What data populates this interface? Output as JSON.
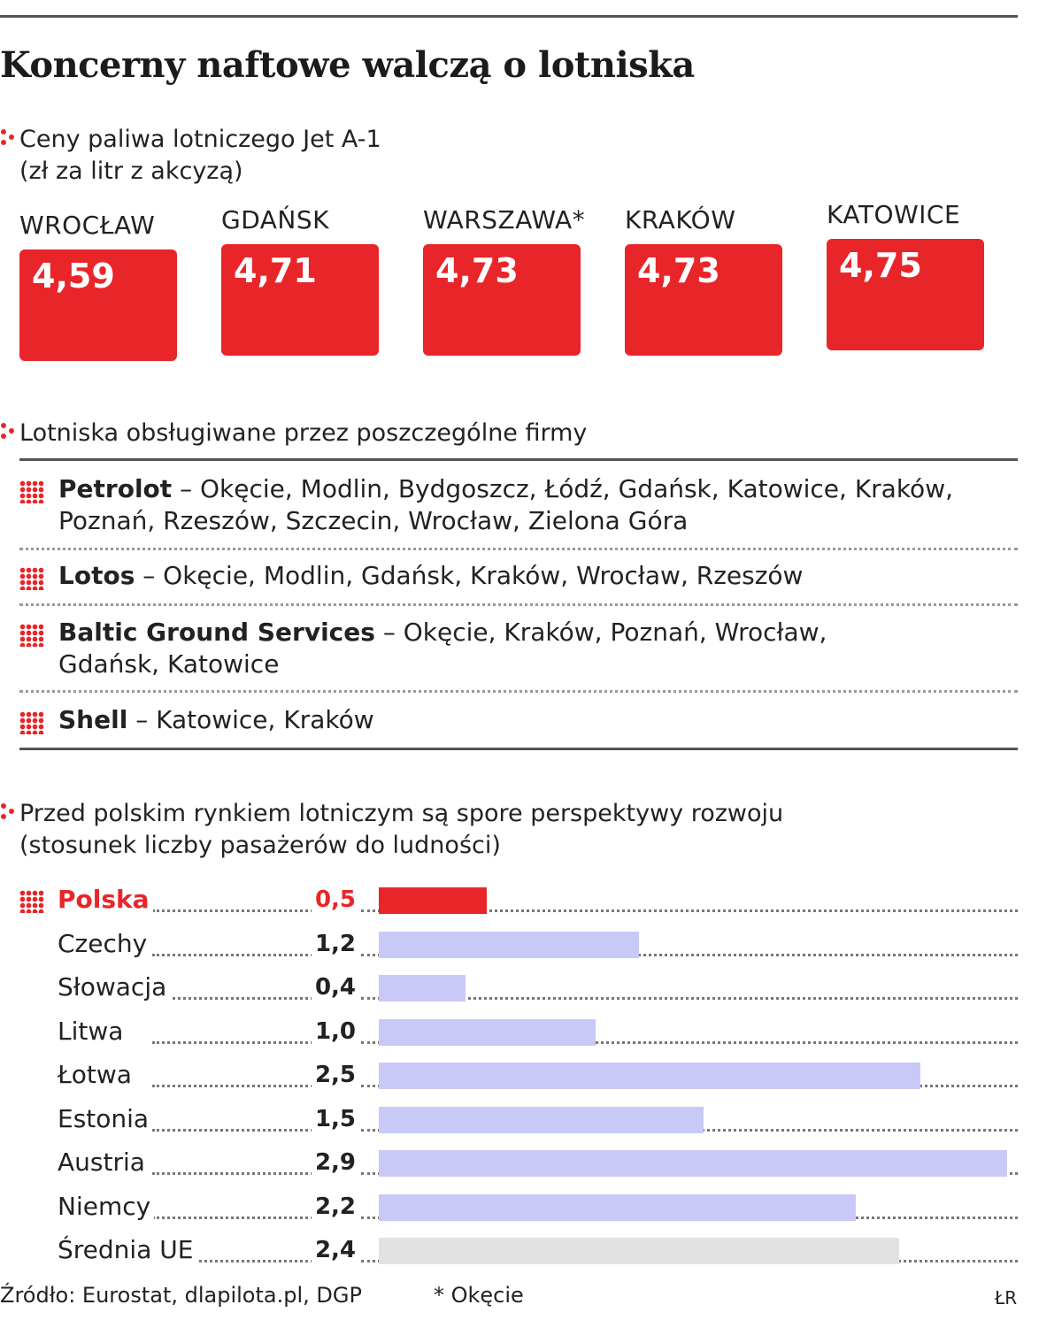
{
  "title": "Koncerny naftowe walczą o lotniska",
  "prices": {
    "heading_line1": "Ceny paliwa lotniczego Jet A-1",
    "heading_line2": "(zł za litr z akcyzą)",
    "items": [
      {
        "city": "WROCŁAW",
        "value": "4,59"
      },
      {
        "city": "GDAŃSK",
        "value": "4,71"
      },
      {
        "city": "WARSZAWA*",
        "value": "4,73"
      },
      {
        "city": "KRAKÓW",
        "value": "4,73"
      },
      {
        "city": "KATOWICE",
        "value": "4,75"
      }
    ]
  },
  "companies": {
    "heading": "Lotniska obsługiwane przez poszczególne firmy",
    "items": [
      {
        "name": "Petrolot",
        "airports_line1": " – Okęcie, Modlin, Bydgoszcz, Łódź, Gdańsk, Katowice, Kraków,",
        "airports_line2": "Poznań, Rzeszów, Szczecin, Wrocław, Zielona Góra"
      },
      {
        "name": "Lotos",
        "airports_line1": " – Okęcie, Modlin, Gdańsk, Kraków, Wrocław, Rzeszów",
        "airports_line2": ""
      },
      {
        "name": "Baltic Ground Services",
        "airports_line1": " – Okęcie, Kraków, Poznań, Wrocław,",
        "airports_line2": "Gdańsk, Katowice"
      },
      {
        "name": "Shell",
        "airports_line1": " – Katowice, Kraków",
        "airports_line2": ""
      }
    ]
  },
  "chart_data": {
    "type": "bar",
    "orientation": "horizontal",
    "title": "Przed polskim rynkiem lotniczym są spore perspektywy rozwoju",
    "subtitle": "(stosunek liczby pasażerów do ludności)",
    "categories": [
      "Polska",
      "Czechy",
      "Słowacja",
      "Litwa",
      "Łotwa",
      "Estonia",
      "Austria",
      "Niemcy",
      "Średnia UE"
    ],
    "values": [
      0.5,
      1.2,
      0.4,
      1.0,
      2.5,
      1.5,
      2.9,
      2.2,
      2.4
    ],
    "value_labels": [
      "0,5",
      "1,2",
      "0,4",
      "1,0",
      "2,5",
      "1,5",
      "2,9",
      "2,2",
      "2,4"
    ],
    "xlim": [
      0,
      2.9
    ],
    "colors": {
      "highlight": "#e8262a",
      "default": "#c9c9f7",
      "average": "#e2e2e2"
    },
    "highlight_category": "Polska",
    "average_category": "Średnia UE"
  },
  "footer": {
    "source": "Źródło: Eurostat, dlapilota.pl,  DGP",
    "note": "* Okęcie",
    "credit": "ŁR"
  }
}
